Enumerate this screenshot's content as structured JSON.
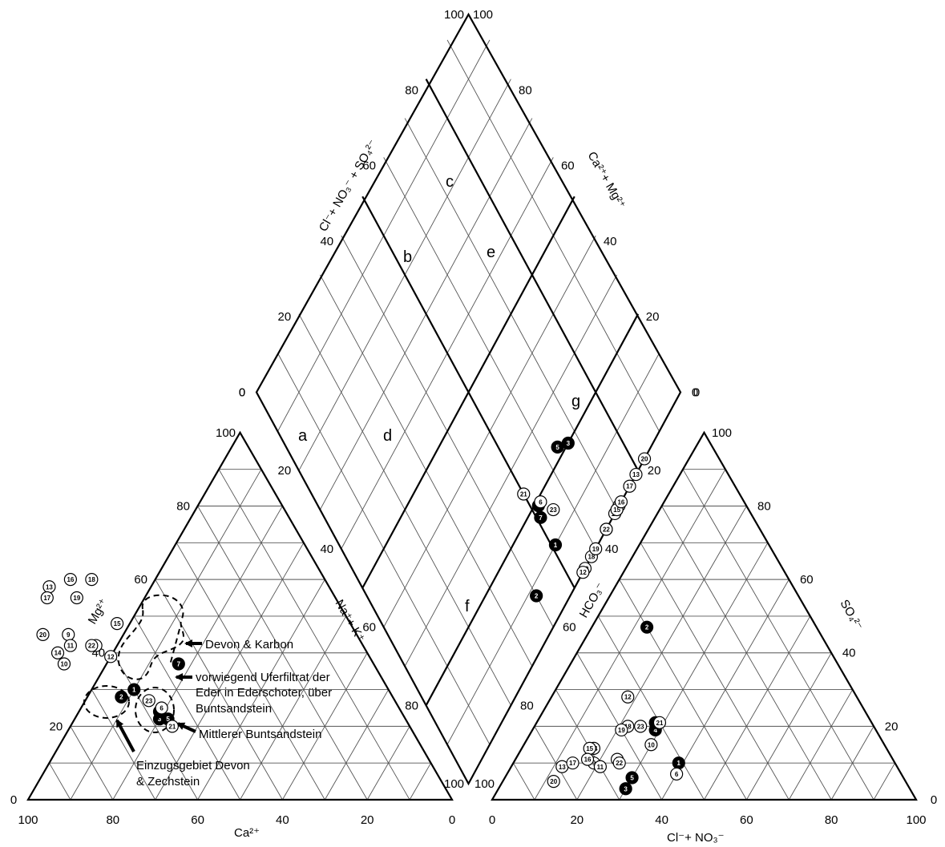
{
  "diagram": {
    "type": "piper",
    "axes": {
      "cation_ca": "Ca²⁺",
      "cation_mg": "Mg²⁺",
      "anion_cl": "Cl⁻+ NO₃⁻",
      "anion_so4": "SO₄²⁻",
      "diamond_left_upper": "Cl⁻+ NO₃⁻ + SO₄²⁻",
      "diamond_right_upper": "Ca²⁺+ Mg²⁺",
      "diamond_left_lower": "Na⁺+ K⁺",
      "diamond_right_lower": "HCO₃⁻"
    },
    "ticks": [
      "0",
      "20",
      "40",
      "60",
      "80",
      "100"
    ],
    "zones": [
      "a",
      "b",
      "c",
      "d",
      "e",
      "f",
      "g"
    ],
    "annotations": {
      "devon_karbon": "Devon & Karbon",
      "uferfiltrat": [
        "vorwiegend Uferfiltrat der",
        "Eder in Ederschoter, über",
        "Buntsandstein"
      ],
      "mittlerer": "Mittlerer Buntsandstein",
      "einzugsgebiet": [
        "Einzugsgebiet Devon",
        "& Zechstein"
      ]
    },
    "samples": [
      {
        "id": "1",
        "style": "filled",
        "ca": 60,
        "mg": 30,
        "cl": 39,
        "so4": 10
      },
      {
        "id": "2",
        "style": "filled",
        "ca": 64,
        "mg": 28,
        "cl": 13,
        "so4": 47
      },
      {
        "id": "3",
        "style": "filled",
        "ca": 58,
        "mg": 22,
        "cl": 30,
        "so4": 3
      },
      {
        "id": "4",
        "style": "filled",
        "ca": 57,
        "mg": 24,
        "cl": 29,
        "so4": 19
      },
      {
        "id": "5",
        "style": "filled",
        "ca": 56,
        "mg": 22,
        "cl": 30,
        "so4": 6
      },
      {
        "id": "6",
        "style": "open",
        "ca": 56,
        "mg": 25,
        "cl": 40,
        "so4": 7
      },
      {
        "id": "7",
        "style": "filled",
        "ca": 46,
        "mg": 37,
        "cl": 28,
        "so4": 21
      },
      {
        "id": "8",
        "style": "open",
        "ca": 63,
        "mg": 42,
        "cl": 24,
        "so4": 11
      },
      {
        "id": "9",
        "style": "open",
        "ca": 68,
        "mg": 45,
        "cl": 19,
        "so4": 10
      },
      {
        "id": "10",
        "style": "open",
        "ca": 73,
        "mg": 37,
        "cl": 30,
        "so4": 15
      },
      {
        "id": "11",
        "style": "open",
        "ca": 69,
        "mg": 42,
        "cl": 21,
        "so4": 9
      },
      {
        "id": "12",
        "style": "open",
        "ca": 61,
        "mg": 39,
        "cl": 18,
        "so4": 28
      },
      {
        "id": "13",
        "style": "open",
        "ca": 66,
        "mg": 58,
        "cl": 12,
        "so4": 9
      },
      {
        "id": "14",
        "style": "open",
        "ca": 73,
        "mg": 40,
        "cl": 17,
        "so4": 14
      },
      {
        "id": "15",
        "style": "open",
        "ca": 55,
        "mg": 48,
        "cl": 16,
        "so4": 14
      },
      {
        "id": "16",
        "style": "open",
        "ca": 60,
        "mg": 60,
        "cl": 17,
        "so4": 11
      },
      {
        "id": "17",
        "style": "open",
        "ca": 68,
        "mg": 55,
        "cl": 14,
        "so4": 10
      },
      {
        "id": "18",
        "style": "open",
        "ca": 55,
        "mg": 60,
        "cl": 22,
        "so4": 20
      },
      {
        "id": "19",
        "style": "open",
        "ca": 61,
        "mg": 55,
        "cl": 21,
        "so4": 19
      },
      {
        "id": "20",
        "style": "open",
        "ca": 74,
        "mg": 45,
        "cl": 12,
        "so4": 5
      },
      {
        "id": "21",
        "style": "open",
        "ca": 56,
        "mg": 20,
        "cl": 29,
        "so4": 21
      },
      {
        "id": "22",
        "style": "open",
        "ca": 64,
        "mg": 42,
        "cl": 25,
        "so4": 10
      },
      {
        "id": "23",
        "style": "open",
        "ca": 58,
        "mg": 27,
        "cl": 25,
        "so4": 20
      }
    ]
  }
}
